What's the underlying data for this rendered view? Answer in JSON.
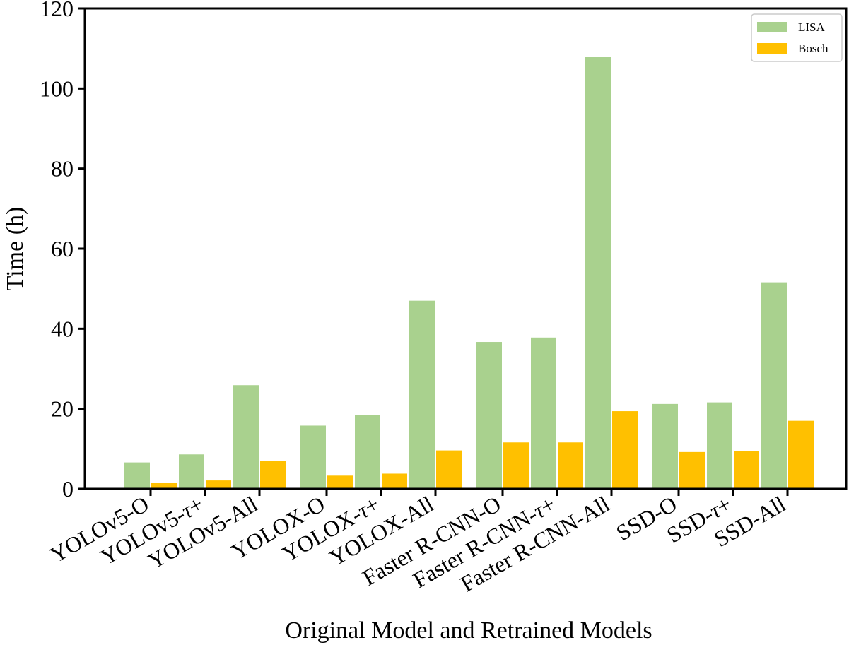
{
  "chart_data": {
    "type": "bar",
    "title": "",
    "xlabel": "Original Model and Retrained Models",
    "ylabel": "Time (h)",
    "ylim": [
      0,
      120
    ],
    "yticks": [
      0,
      20,
      40,
      60,
      80,
      100,
      120
    ],
    "categories": [
      {
        "prefix": "YOLOv5-O",
        "tau": "",
        "suffix": ""
      },
      {
        "prefix": "YOLOv5-",
        "tau": "τ",
        "suffix": "+"
      },
      {
        "prefix": "YOLOv5-All",
        "tau": "",
        "suffix": ""
      },
      {
        "prefix": "YOLOX-O",
        "tau": "",
        "suffix": ""
      },
      {
        "prefix": "YOLOX-",
        "tau": "τ",
        "suffix": "+"
      },
      {
        "prefix": "YOLOX-All",
        "tau": "",
        "suffix": ""
      },
      {
        "prefix": "Faster R-CNN-O",
        "tau": "",
        "suffix": ""
      },
      {
        "prefix": "Faster R-CNN-",
        "tau": "τ",
        "suffix": "+"
      },
      {
        "prefix": "Faster R-CNN-All",
        "tau": "",
        "suffix": ""
      },
      {
        "prefix": "SSD-O",
        "tau": "",
        "suffix": ""
      },
      {
        "prefix": "SSD-",
        "tau": "τ",
        "suffix": "+"
      },
      {
        "prefix": "SSD-All",
        "tau": "",
        "suffix": ""
      }
    ],
    "groups": [
      [
        0,
        1,
        2
      ],
      [
        3,
        4,
        5
      ],
      [
        6,
        7,
        8
      ],
      [
        9,
        10,
        11
      ]
    ],
    "series": [
      {
        "name": "LISA",
        "color": "#a9d18e",
        "values": [
          6.6,
          8.6,
          25.9,
          15.8,
          18.4,
          47.0,
          36.7,
          37.8,
          108.0,
          21.2,
          21.6,
          51.6
        ]
      },
      {
        "name": "Bosch",
        "color": "#ffc000",
        "values": [
          1.5,
          2.1,
          7.0,
          3.3,
          3.8,
          9.6,
          11.6,
          11.6,
          19.4,
          9.2,
          9.5,
          17.0
        ]
      }
    ],
    "legend_position": "top-right",
    "grid": false
  }
}
